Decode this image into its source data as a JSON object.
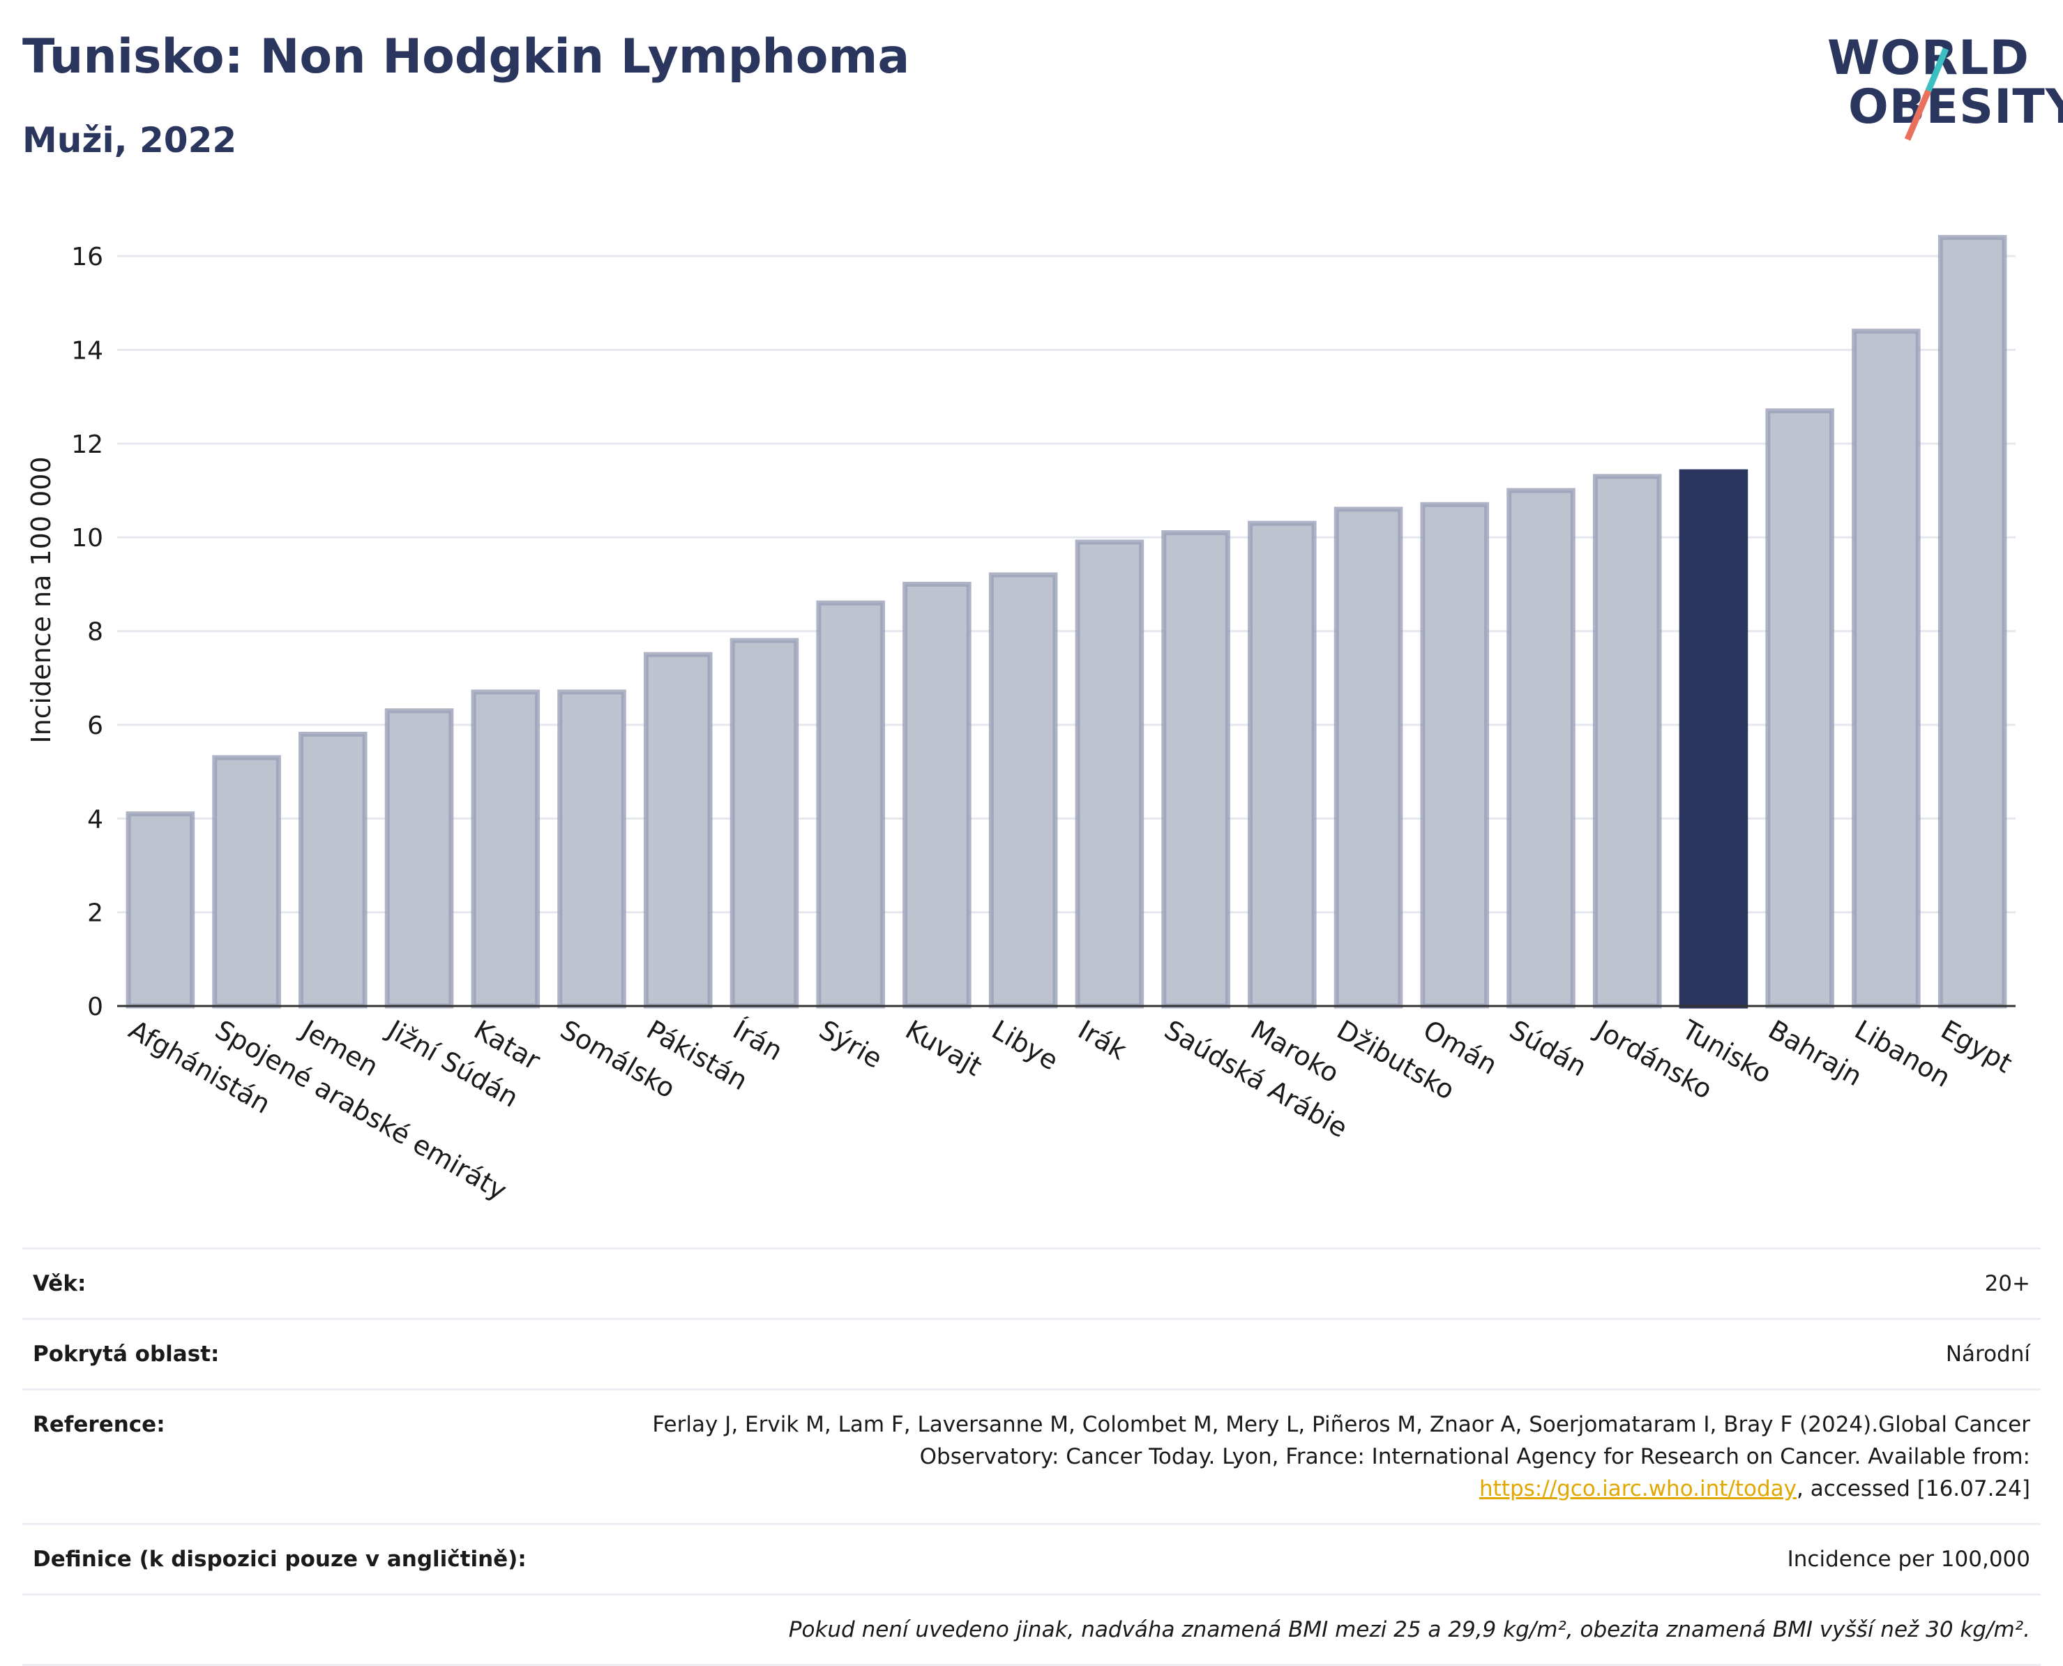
{
  "title": "Tunisko: Non Hodgkin Lymphoma",
  "subtitle": "Muži, 2022",
  "logo": {
    "line1": "WORLD",
    "line2": "OBESITY"
  },
  "colors": {
    "highlight": "#2b365f",
    "bar": "#bfc3d0",
    "bar_stroke": "#9aa0b8",
    "grid": "#e6e7ee"
  },
  "chart_data": {
    "type": "bar",
    "ylabel": "Incidence na 100 000",
    "ylim": [
      0,
      17
    ],
    "yticks": [
      0,
      2,
      4,
      6,
      8,
      10,
      12,
      14,
      16
    ],
    "highlight": "Tunisko",
    "categories": [
      "Afghánistán",
      "Spojené arabské emiráty",
      "Jemen",
      "Jižní Súdán",
      "Katar",
      "Somálsko",
      "Pákistán",
      "Írán",
      "Sýrie",
      "Kuvajt",
      "Libye",
      "Irák",
      "Saúdská Arábie",
      "Maroko",
      "Džibutsko",
      "Omán",
      "Súdán",
      "Jordánsko",
      "Tunisko",
      "Bahrajn",
      "Libanon",
      "Egypt"
    ],
    "values": [
      4.1,
      5.3,
      5.8,
      6.3,
      6.7,
      6.7,
      7.5,
      7.8,
      8.6,
      9.0,
      9.2,
      9.9,
      10.1,
      10.3,
      10.6,
      10.7,
      11.0,
      11.3,
      11.4,
      12.7,
      14.4,
      16.4
    ]
  },
  "meta": {
    "age_label": "Věk:",
    "age_value": "20+",
    "area_label": "Pokrytá oblast:",
    "area_value": "Národní",
    "ref_label": "Reference:",
    "ref_text": "Ferlay J, Ervik M, Lam F, Laversanne M, Colombet M, Mery L, Piñeros M, Znaor A, Soerjomataram I, Bray F (2024).Global Cancer Observatory: Cancer Today. Lyon, France: International Agency for Research on Cancer. Available from:",
    "ref_link": "https://gco.iarc.who.int/today",
    "ref_accessed": ", accessed [16.07.24]",
    "def_label": "Definice (k dispozici pouze v angličtině):",
    "def_value": "Incidence per 100,000",
    "note": "Pokud není uvedeno jinak, nadváha znamená BMI mezi 25 a 29,9 kg/m², obezita znamená BMI vyšší než 30 kg/m²."
  }
}
